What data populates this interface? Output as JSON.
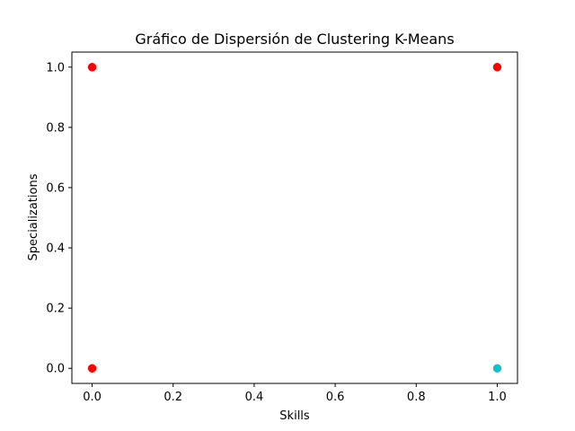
{
  "chart_data": {
    "type": "scatter",
    "title": "Gráfico de Dispersión de Clustering K-Means",
    "xlabel": "Skills",
    "ylabel": "Specializations",
    "xlim": [
      -0.05,
      1.05
    ],
    "ylim": [
      -0.05,
      1.05
    ],
    "xticks": [
      "0.0",
      "0.2",
      "0.4",
      "0.6",
      "0.8",
      "1.0"
    ],
    "yticks": [
      "0.0",
      "0.2",
      "0.4",
      "0.6",
      "0.8",
      "1.0"
    ],
    "grid": false,
    "series": [
      {
        "color": "#ff0000",
        "points": [
          [
            0,
            1
          ],
          [
            1,
            1
          ],
          [
            0,
            0
          ]
        ]
      },
      {
        "color": "#17becf",
        "points": [
          [
            1,
            0
          ]
        ]
      }
    ]
  }
}
